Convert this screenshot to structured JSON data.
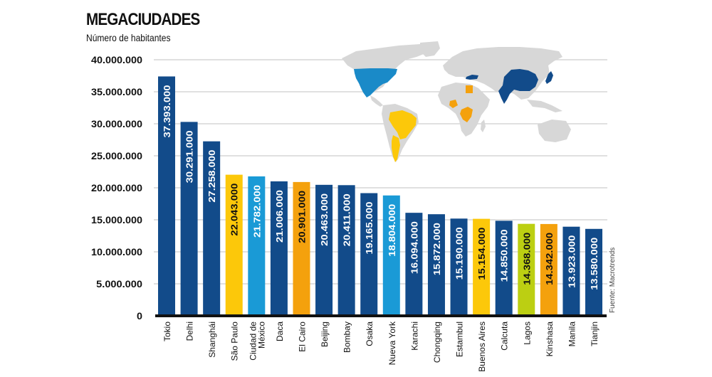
{
  "header": {
    "title": "MEGACIUDADES",
    "subtitle": "Número de habitantes"
  },
  "source": "Fuente: Macrotrends",
  "colors": {
    "dark_blue": "#124b8a",
    "light_blue": "#1a9ad6",
    "yellow": "#fcc80a",
    "orange": "#f4a10d",
    "lime": "#bccf12",
    "grid": "#d6d6d6",
    "axis": "#111111",
    "map_land": "#d7d7d7"
  },
  "chart_data": {
    "type": "bar",
    "title": "MEGACIUDADES",
    "subtitle": "Número de habitantes",
    "xlabel": "",
    "ylabel": "",
    "ylim": [
      0,
      40000000
    ],
    "grid": true,
    "yticks": [
      0,
      5000000,
      10000000,
      15000000,
      20000000,
      25000000,
      30000000,
      35000000,
      40000000
    ],
    "ytick_labels": [
      "0",
      "5.000.000",
      "10.000.000",
      "15.000.000",
      "20.000.000",
      "25.000.000",
      "30.000.000",
      "35.000.000",
      "40.000.000"
    ],
    "categories": [
      [
        "Tokio"
      ],
      [
        "Delhi"
      ],
      [
        "Shanghái"
      ],
      [
        "São Paulo"
      ],
      [
        "Ciudad de",
        "México"
      ],
      [
        "Daca"
      ],
      [
        "El Cairo"
      ],
      [
        "Beijing"
      ],
      [
        "Bombay"
      ],
      [
        "Osaka"
      ],
      [
        "Nueva York"
      ],
      [
        "Karachi"
      ],
      [
        "Chongqing"
      ],
      [
        "Estambul"
      ],
      [
        "Buenos Aires"
      ],
      [
        "Calcuta"
      ],
      [
        "Lagos"
      ],
      [
        "Kinshasa"
      ],
      [
        "Manila"
      ],
      [
        "Tianjin"
      ]
    ],
    "values": [
      37393000,
      30291000,
      27258000,
      22043000,
      21782000,
      21006000,
      20901000,
      20463000,
      20411000,
      19165000,
      18804000,
      16094000,
      15872000,
      15190000,
      15154000,
      14850000,
      14368000,
      14342000,
      13923000,
      13580000
    ],
    "value_labels": [
      "37.393.000",
      "30.291.000",
      "27.258.000",
      "22.043.000",
      "21.782.000",
      "21.006.000",
      "20.901.000",
      "20.463.000",
      "20.411.000",
      "19.165.000",
      "18.804.000",
      "16.094.000",
      "15.872.000",
      "15.190.000",
      "15.154.000",
      "14.850.000",
      "14.368.000",
      "14.342.000",
      "13.923.000",
      "13.580.000"
    ],
    "bar_colors": [
      "dark_blue",
      "dark_blue",
      "dark_blue",
      "yellow",
      "light_blue",
      "dark_blue",
      "orange",
      "dark_blue",
      "dark_blue",
      "dark_blue",
      "light_blue",
      "dark_blue",
      "dark_blue",
      "dark_blue",
      "yellow",
      "dark_blue",
      "lime",
      "orange",
      "dark_blue",
      "dark_blue"
    ],
    "label_text_colors": [
      "#ffffff",
      "#ffffff",
      "#ffffff",
      "#111111",
      "#ffffff",
      "#ffffff",
      "#111111",
      "#ffffff",
      "#ffffff",
      "#ffffff",
      "#ffffff",
      "#ffffff",
      "#ffffff",
      "#ffffff",
      "#111111",
      "#ffffff",
      "#111111",
      "#111111",
      "#ffffff",
      "#ffffff"
    ],
    "legend": "none"
  },
  "map": {
    "description_regions": [
      "north-america",
      "south-america",
      "africa",
      "europe",
      "asia",
      "australia"
    ]
  }
}
